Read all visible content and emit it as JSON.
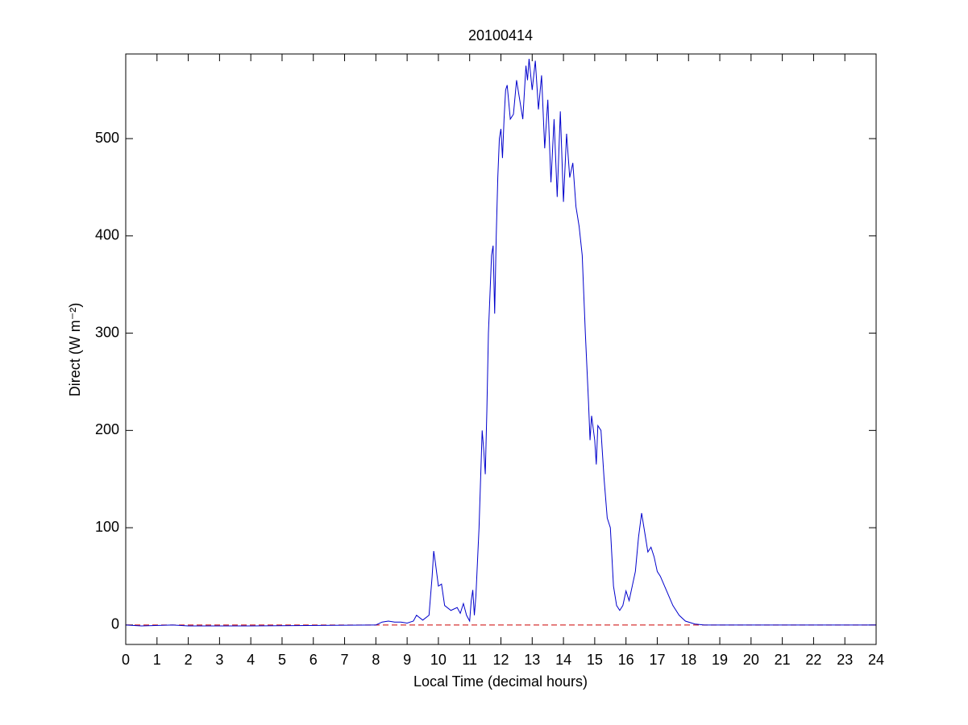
{
  "chart_data": {
    "type": "line",
    "title": "20100414",
    "xlabel": "Local Time (decimal hours)",
    "ylabel": "Direct (W m⁻²)",
    "x": [
      0,
      0.5,
      1.5,
      2,
      3.5,
      4,
      7.9,
      8.0,
      8.2,
      8.4,
      8.6,
      8.8,
      9.0,
      9.2,
      9.3,
      9.5,
      9.7,
      9.8,
      9.85,
      9.9,
      10.0,
      10.1,
      10.2,
      10.4,
      10.6,
      10.7,
      10.8,
      10.9,
      11.0,
      11.05,
      11.1,
      11.15,
      11.2,
      11.3,
      11.4,
      11.45,
      11.5,
      11.55,
      11.6,
      11.65,
      11.7,
      11.75,
      11.8,
      11.85,
      11.9,
      11.95,
      12.0,
      12.05,
      12.1,
      12.15,
      12.2,
      12.3,
      12.4,
      12.5,
      12.6,
      12.7,
      12.8,
      12.85,
      12.9,
      13.0,
      13.1,
      13.2,
      13.3,
      13.4,
      13.5,
      13.6,
      13.7,
      13.8,
      13.9,
      14.0,
      14.1,
      14.2,
      14.3,
      14.4,
      14.5,
      14.6,
      14.7,
      14.8,
      14.85,
      14.9,
      15.0,
      15.05,
      15.1,
      15.2,
      15.3,
      15.4,
      15.5,
      15.6,
      15.7,
      15.8,
      15.9,
      16.0,
      16.1,
      16.2,
      16.3,
      16.4,
      16.5,
      16.6,
      16.7,
      16.8,
      16.9,
      17.0,
      17.1,
      17.3,
      17.5,
      17.7,
      17.9,
      18.2,
      18.5,
      20,
      24
    ],
    "series": [
      {
        "color": "#0000cc",
        "values": [
          0,
          -1,
          0,
          -1,
          -1,
          -1,
          0,
          0,
          3,
          4,
          3,
          3,
          2,
          4,
          10,
          5,
          10,
          50,
          76,
          65,
          40,
          42,
          20,
          15,
          18,
          12,
          22,
          10,
          4,
          25,
          36,
          10,
          30,
          100,
          200,
          180,
          155,
          220,
          300,
          340,
          380,
          390,
          320,
          400,
          460,
          500,
          510,
          480,
          520,
          550,
          555,
          520,
          525,
          560,
          540,
          520,
          575,
          560,
          582,
          550,
          580,
          530,
          565,
          490,
          540,
          455,
          520,
          440,
          528,
          435,
          505,
          460,
          475,
          430,
          410,
          380,
          300,
          230,
          190,
          215,
          190,
          165,
          205,
          200,
          150,
          110,
          100,
          40,
          20,
          15,
          20,
          35,
          25,
          40,
          55,
          90,
          115,
          95,
          75,
          80,
          70,
          55,
          50,
          35,
          20,
          10,
          4,
          1,
          0,
          0,
          0
        ]
      }
    ],
    "reference_line": {
      "value": 0,
      "color": "#cc0000",
      "dashed": true
    },
    "xlim": [
      0,
      24
    ],
    "xticks": [
      0,
      1,
      2,
      3,
      4,
      5,
      6,
      7,
      8,
      9,
      10,
      11,
      12,
      13,
      14,
      15,
      16,
      17,
      18,
      19,
      20,
      21,
      22,
      23,
      24
    ],
    "ylim": [
      -20,
      587
    ],
    "yticks": [
      0,
      100,
      200,
      300,
      400,
      500
    ]
  }
}
